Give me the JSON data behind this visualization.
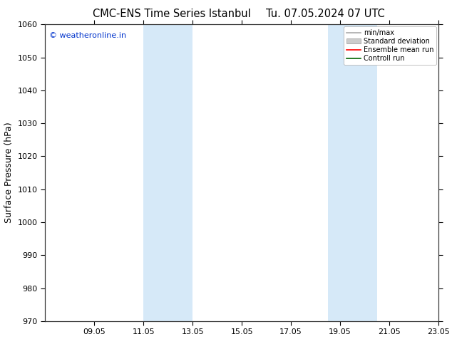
{
  "title": "CMC-ENS Time Series Istanbul",
  "title_right": "Tu. 07.05.2024 07 UTC",
  "ylabel": "Surface Pressure (hPa)",
  "ylim": [
    970,
    1060
  ],
  "yticks": [
    970,
    980,
    990,
    1000,
    1010,
    1020,
    1030,
    1040,
    1050,
    1060
  ],
  "xlim": [
    0,
    16
  ],
  "xtick_labels": [
    "09.05",
    "11.05",
    "13.05",
    "15.05",
    "17.05",
    "19.05",
    "21.05",
    "23.05"
  ],
  "xtick_positions": [
    2,
    4,
    6,
    8,
    10,
    12,
    14,
    16
  ],
  "shaded_bands": [
    {
      "x_start": 4,
      "x_end": 6
    },
    {
      "x_start": 11.5,
      "x_end": 13.5
    }
  ],
  "band_color": "#d6e9f8",
  "background_color": "#ffffff",
  "watermark_text": "© weatheronline.in",
  "watermark_color": "#0033cc",
  "legend_entries": [
    {
      "label": "min/max",
      "color": "#aaaaaa",
      "type": "line"
    },
    {
      "label": "Standard deviation",
      "color": "#cccccc",
      "type": "box"
    },
    {
      "label": "Ensemble mean run",
      "color": "#ff0000",
      "type": "line"
    },
    {
      "label": "Controll run",
      "color": "#006600",
      "type": "line"
    }
  ],
  "title_fontsize": 10.5,
  "ylabel_fontsize": 9,
  "tick_fontsize": 8,
  "legend_fontsize": 7,
  "watermark_fontsize": 8
}
